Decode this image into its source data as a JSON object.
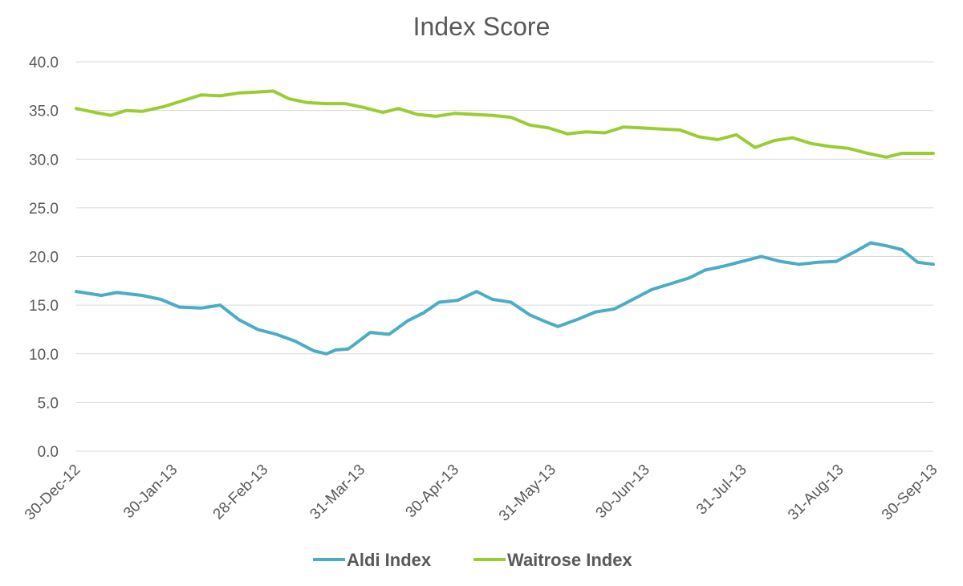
{
  "chart_data": {
    "type": "line",
    "title": "Index Score",
    "xlabel": "",
    "ylabel": "",
    "ylim": [
      0,
      40
    ],
    "yticks": [
      "0.0",
      "5.0",
      "10.0",
      "15.0",
      "20.0",
      "25.0",
      "30.0",
      "35.0",
      "40.0"
    ],
    "grid": true,
    "legend_position": "bottom",
    "x_tick_labels": [
      "30-Dec-12",
      "30-Jan-13",
      "28-Feb-13",
      "31-Mar-13",
      "30-Apr-13",
      "31-May-13",
      "30-Jun-13",
      "31-Jul-13",
      "31-Aug-13",
      "30-Sep-13"
    ],
    "x_range": [
      "2012-12-30",
      "2013-09-30"
    ],
    "series": [
      {
        "name": "Aldi Index",
        "color": "#4bacc6",
        "points": [
          [
            "2012-12-30",
            16.4
          ],
          [
            "2013-01-07",
            16.0
          ],
          [
            "2013-01-12",
            16.3
          ],
          [
            "2013-01-20",
            16.0
          ],
          [
            "2013-01-26",
            15.6
          ],
          [
            "2013-02-01",
            14.8
          ],
          [
            "2013-02-08",
            14.7
          ],
          [
            "2013-02-14",
            15.0
          ],
          [
            "2013-02-20",
            13.5
          ],
          [
            "2013-02-26",
            12.5
          ],
          [
            "2013-03-04",
            12.0
          ],
          [
            "2013-03-10",
            11.3
          ],
          [
            "2013-03-16",
            10.3
          ],
          [
            "2013-03-20",
            10.0
          ],
          [
            "2013-03-23",
            10.4
          ],
          [
            "2013-03-27",
            10.5
          ],
          [
            "2013-04-03",
            12.2
          ],
          [
            "2013-04-09",
            12.0
          ],
          [
            "2013-04-15",
            13.4
          ],
          [
            "2013-04-20",
            14.2
          ],
          [
            "2013-04-25",
            15.3
          ],
          [
            "2013-05-01",
            15.5
          ],
          [
            "2013-05-07",
            16.4
          ],
          [
            "2013-05-12",
            15.6
          ],
          [
            "2013-05-18",
            15.3
          ],
          [
            "2013-05-24",
            14.0
          ],
          [
            "2013-05-29",
            13.3
          ],
          [
            "2013-06-02",
            12.8
          ],
          [
            "2013-06-08",
            13.5
          ],
          [
            "2013-06-14",
            14.3
          ],
          [
            "2013-06-20",
            14.6
          ],
          [
            "2013-06-26",
            15.6
          ],
          [
            "2013-07-02",
            16.6
          ],
          [
            "2013-07-08",
            17.2
          ],
          [
            "2013-07-14",
            17.8
          ],
          [
            "2013-07-19",
            18.6
          ],
          [
            "2013-07-25",
            19.0
          ],
          [
            "2013-07-31",
            19.5
          ],
          [
            "2013-08-06",
            20.0
          ],
          [
            "2013-08-12",
            19.5
          ],
          [
            "2013-08-18",
            19.2
          ],
          [
            "2013-08-24",
            19.4
          ],
          [
            "2013-08-30",
            19.5
          ],
          [
            "2013-09-05",
            20.5
          ],
          [
            "2013-09-10",
            21.4
          ],
          [
            "2013-09-15",
            21.1
          ],
          [
            "2013-09-20",
            20.7
          ],
          [
            "2013-09-25",
            19.4
          ],
          [
            "2013-09-30",
            19.2
          ]
        ]
      },
      {
        "name": "Waitrose Index",
        "color": "#9acd32",
        "points": [
          [
            "2012-12-30",
            35.2
          ],
          [
            "2013-01-05",
            34.8
          ],
          [
            "2013-01-10",
            34.5
          ],
          [
            "2013-01-15",
            35.0
          ],
          [
            "2013-01-20",
            34.9
          ],
          [
            "2013-01-27",
            35.4
          ],
          [
            "2013-02-02",
            36.0
          ],
          [
            "2013-02-08",
            36.6
          ],
          [
            "2013-02-14",
            36.5
          ],
          [
            "2013-02-20",
            36.8
          ],
          [
            "2013-02-26",
            36.9
          ],
          [
            "2013-03-03",
            37.0
          ],
          [
            "2013-03-08",
            36.2
          ],
          [
            "2013-03-14",
            35.8
          ],
          [
            "2013-03-20",
            35.7
          ],
          [
            "2013-03-26",
            35.7
          ],
          [
            "2013-04-01",
            35.3
          ],
          [
            "2013-04-07",
            34.8
          ],
          [
            "2013-04-12",
            35.2
          ],
          [
            "2013-04-18",
            34.6
          ],
          [
            "2013-04-24",
            34.4
          ],
          [
            "2013-04-30",
            34.7
          ],
          [
            "2013-05-06",
            34.6
          ],
          [
            "2013-05-12",
            34.5
          ],
          [
            "2013-05-18",
            34.3
          ],
          [
            "2013-05-24",
            33.5
          ],
          [
            "2013-05-30",
            33.2
          ],
          [
            "2013-06-05",
            32.6
          ],
          [
            "2013-06-11",
            32.8
          ],
          [
            "2013-06-17",
            32.7
          ],
          [
            "2013-06-23",
            33.3
          ],
          [
            "2013-06-29",
            33.2
          ],
          [
            "2013-07-05",
            33.1
          ],
          [
            "2013-07-11",
            33.0
          ],
          [
            "2013-07-17",
            32.3
          ],
          [
            "2013-07-23",
            32.0
          ],
          [
            "2013-07-29",
            32.5
          ],
          [
            "2013-08-04",
            31.2
          ],
          [
            "2013-08-10",
            31.9
          ],
          [
            "2013-08-16",
            32.2
          ],
          [
            "2013-08-22",
            31.6
          ],
          [
            "2013-08-28",
            31.3
          ],
          [
            "2013-09-03",
            31.1
          ],
          [
            "2013-09-09",
            30.6
          ],
          [
            "2013-09-15",
            30.2
          ],
          [
            "2013-09-20",
            30.6
          ],
          [
            "2013-09-25",
            30.6
          ],
          [
            "2013-09-30",
            30.6
          ]
        ]
      }
    ]
  }
}
